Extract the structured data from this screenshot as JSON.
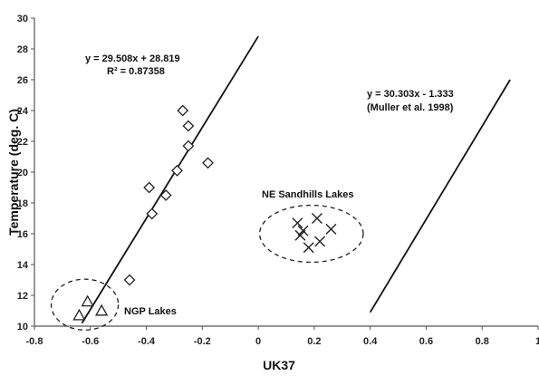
{
  "chart_data": {
    "type": "scatter",
    "xlabel": "UK37",
    "ylabel": "Temperature (deg. C)",
    "xlim": [
      -0.8,
      1
    ],
    "ylim": [
      10,
      30
    ],
    "x_ticks": [
      "-0.8",
      "-0.6",
      "-0.4",
      "-0.2",
      "0",
      "0.2",
      "0.4",
      "0.6",
      "0.8",
      "1"
    ],
    "y_ticks": [
      "10",
      "12",
      "14",
      "16",
      "18",
      "20",
      "22",
      "24",
      "26",
      "28",
      "30"
    ],
    "grid": false,
    "series": [
      {
        "marker": "diamond",
        "points": [
          {
            "x": -0.27,
            "y": 24.0
          },
          {
            "x": -0.25,
            "y": 23.0
          },
          {
            "x": -0.25,
            "y": 21.7
          },
          {
            "x": -0.29,
            "y": 20.1
          },
          {
            "x": -0.18,
            "y": 20.6
          },
          {
            "x": -0.39,
            "y": 19.0
          },
          {
            "x": -0.33,
            "y": 18.5
          },
          {
            "x": -0.38,
            "y": 17.3
          },
          {
            "x": -0.46,
            "y": 13.0
          }
        ]
      },
      {
        "marker": "triangle",
        "points": [
          {
            "x": -0.61,
            "y": 11.6
          },
          {
            "x": -0.64,
            "y": 10.7
          },
          {
            "x": -0.56,
            "y": 11.0
          }
        ]
      },
      {
        "marker": "x",
        "points": [
          {
            "x": 0.14,
            "y": 16.7
          },
          {
            "x": 0.21,
            "y": 17.0
          },
          {
            "x": 0.16,
            "y": 16.2
          },
          {
            "x": 0.15,
            "y": 15.9
          },
          {
            "x": 0.26,
            "y": 16.3
          },
          {
            "x": 0.22,
            "y": 15.5
          },
          {
            "x": 0.18,
            "y": 15.1
          }
        ]
      }
    ],
    "lines": [
      {
        "label": "fit",
        "x1": -0.63,
        "y1": 10.2,
        "x2": 0.0,
        "y2": 28.82
      },
      {
        "label": "muller",
        "x1": 0.4,
        "y1": 10.9,
        "x2": 0.9,
        "y2": 26.0
      }
    ],
    "ellipses": [
      {
        "cx": -0.62,
        "cy": 11.4,
        "rx": 0.12,
        "ry": 1.65
      },
      {
        "cx": 0.19,
        "cy": 16.0,
        "rx": 0.185,
        "ry": 1.85
      }
    ],
    "annotations": {
      "fit_equation": "y = 29.508x + 28.819",
      "fit_r2": "R² = 0.87358",
      "muller_equation": "y = 30.303x - 1.333",
      "muller_citation": "(Muller et al. 1998)",
      "ne_sandhills_label": "NE Sandhills Lakes",
      "ngp_label": "NGP Lakes"
    }
  }
}
